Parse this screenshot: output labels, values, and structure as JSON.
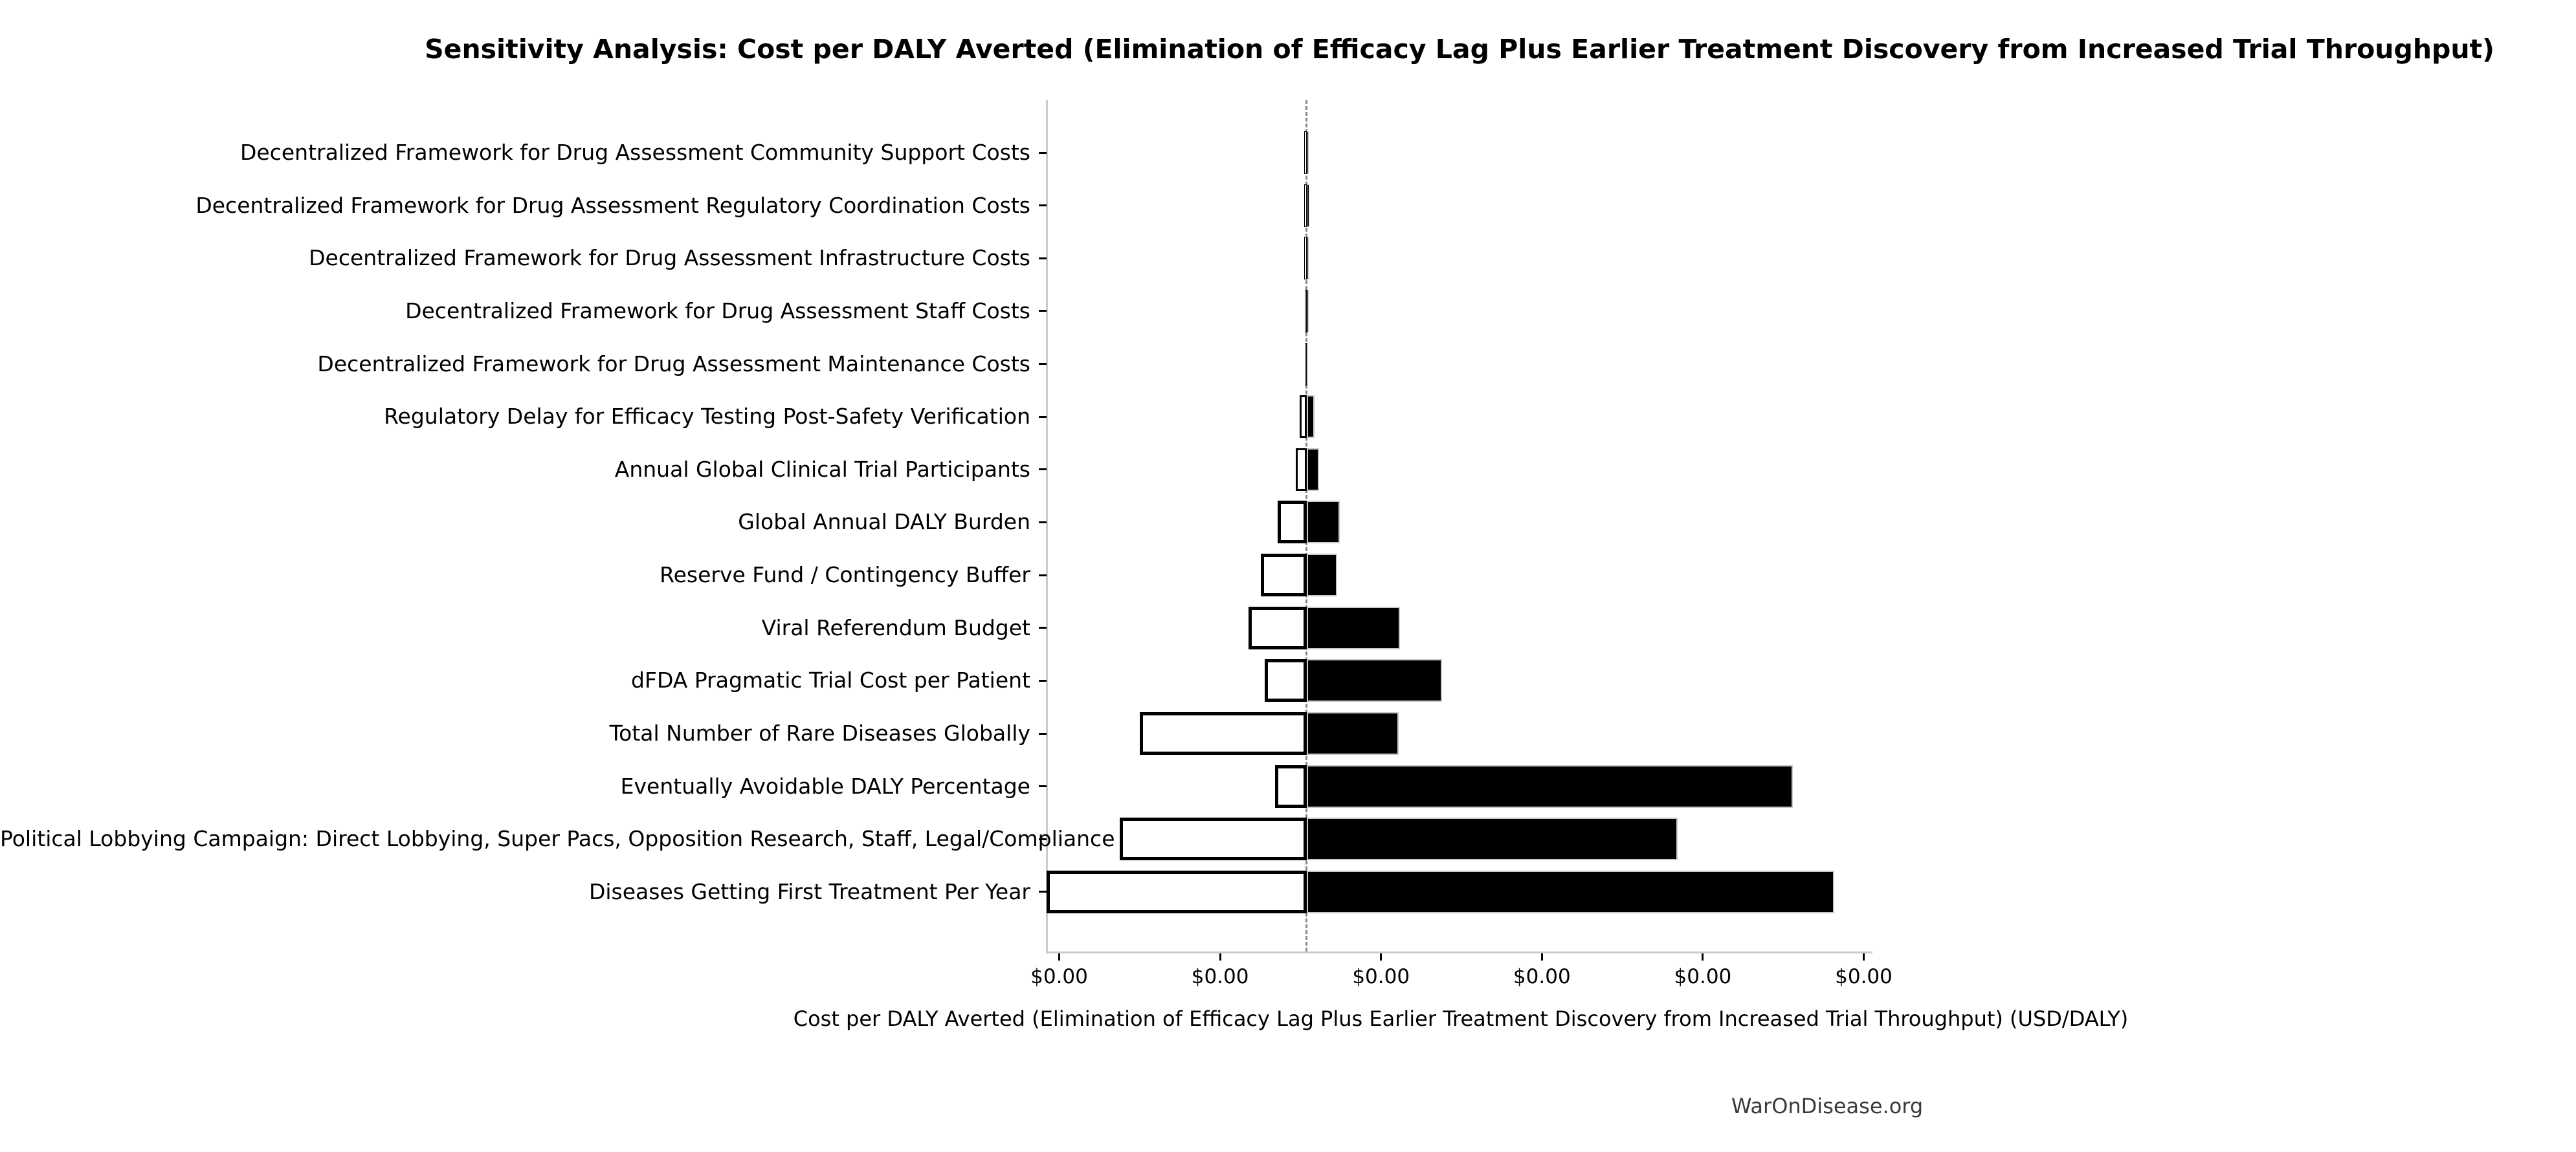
{
  "footer": {
    "text": "WarOnDisease.org"
  },
  "chart_data": {
    "type": "bar",
    "subtype": "tornado-sensitivity",
    "orientation": "horizontal",
    "title": "Sensitivity Analysis: Cost per DALY Averted (Elimination of Efficacy Lag Plus Earlier Treatment Discovery from Increased Trial Throughput)",
    "xlabel": "Cost per DALY Averted (Elimination of Efficacy Lag Plus Earlier Treatment Discovery from Increased Trial Throughput) (USD/DALY)",
    "x_tick_labels": [
      "$0.00",
      "$0.00",
      "$0.00",
      "$0.00",
      "$0.00",
      "$0.00"
    ],
    "grid": false,
    "legend_position": "none",
    "baseline_offset_in_tick_units_from_first_tick": 1.536,
    "value_units_note": "All x-axis tick labels render as $0.00; bar extents below are measured in x-axis tick-interval units relative to the dashed baseline (negative = white/low bar extending left, positive = black/high bar extending right).",
    "categories": [
      "Decentralized Framework for Drug Assessment Community Support Costs",
      "Decentralized Framework for Drug Assessment Regulatory Coordination Costs",
      "Decentralized Framework for Drug Assessment Infrastructure Costs",
      "Decentralized Framework for Drug Assessment Staff Costs",
      "Decentralized Framework for Drug Assessment Maintenance Costs",
      "Regulatory Delay for Efficacy Testing Post-Safety Verification",
      "Annual Global Clinical Trial Participants",
      "Global Annual DALY Burden",
      "Reserve Fund / Contingency Buffer",
      "Viral Referendum Budget",
      "dFDA Pragmatic Trial Cost per Patient",
      "Total Number of Rare Diseases Globally",
      "Eventually Avoidable DALY Percentage",
      "Political Lobbying Campaign: Direct Lobbying, Super Pacs, Opposition Research, Staff, Legal/Compliance",
      "Diseases Getting First Treatment Per Year"
    ],
    "series": [
      {
        "name": "low-side (white bar, left of baseline)",
        "values": [
          -0.013,
          -0.016,
          -0.013,
          -0.012,
          -0.009,
          -0.043,
          -0.068,
          -0.178,
          -0.285,
          -0.359,
          -0.259,
          -1.038,
          -0.197,
          -1.159,
          -1.615
        ]
      },
      {
        "name": "high-side (black bar, right of baseline)",
        "values": [
          0.014,
          0.017,
          0.014,
          0.012,
          0.01,
          0.05,
          0.077,
          0.207,
          0.191,
          0.582,
          0.844,
          0.574,
          3.024,
          2.307,
          3.281
        ]
      }
    ],
    "colors": {
      "bar_low_fill": "#ffffff",
      "bar_low_edge": "#000000",
      "bar_high_fill": "#000000",
      "bar_high_edge": "#c8c8c8",
      "baseline_dashed": "#888888",
      "axis_spine": "#cccccc",
      "tick_mark": "#000000",
      "footer_text": "#3a3a3a"
    }
  }
}
